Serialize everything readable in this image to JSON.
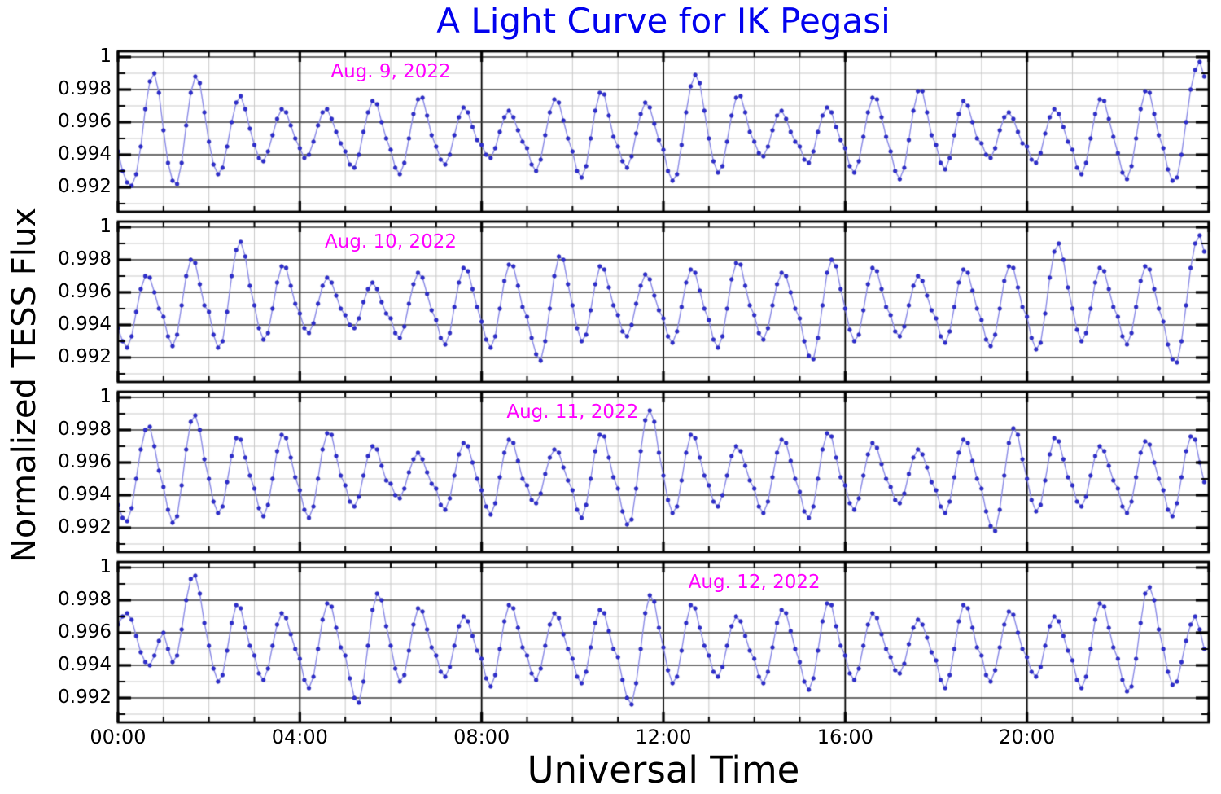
{
  "title": {
    "text": "A Light Curve for IK Pegasi",
    "color": "#0202ee"
  },
  "axes": {
    "x_label": "Universal Time",
    "y_label": "Normalized TESS Flux"
  },
  "style": {
    "marker_color": "#2e2ed2",
    "marker_edge_color": "#1a1aa8",
    "line_color": "#8a8ae6",
    "date_label_color": "#ff00ff",
    "grid_minor_color": "#c9c9c9",
    "grid_major_h_color": "#3a3a3a",
    "grid_major_v_color": "#000000",
    "spine_color": "#000000",
    "background": "#ffffff"
  },
  "chart_data": {
    "type": "line",
    "title": "A Light Curve for IK Pegasi",
    "xlabel": "Universal Time",
    "ylabel": "Normalized TESS Flux",
    "x_range_hours": [
      0,
      24
    ],
    "x_major_ticks": {
      "hours": [
        0,
        4,
        8,
        12,
        16,
        20
      ],
      "labels": [
        "00:00",
        "04:00",
        "08:00",
        "12:00",
        "16:00",
        "20:00"
      ]
    },
    "x_minor_step_hours": 1,
    "y_major_ticks": {
      "values": [
        1.0,
        0.998,
        0.996,
        0.994,
        0.992
      ],
      "labels": [
        "1",
        "0.998",
        "0.996",
        "0.994",
        "0.992"
      ]
    },
    "y_minor_values": [
      0.999,
      0.997,
      0.995,
      0.993,
      0.991
    ],
    "ylim": [
      0.9905,
      1.00035
    ],
    "grid": "both-major-and-minor",
    "legend": "none",
    "flux_base": 0.99,
    "flux_scale": 0.0001,
    "duration_hours": 24,
    "panels": [
      {
        "date_label": "Aug. 9, 2022",
        "label_center_hours": 6,
        "label_flux": 0.9991,
        "values_e4": [
          42,
          30,
          23,
          21,
          28,
          45,
          68,
          85,
          90,
          78,
          55,
          35,
          24,
          22,
          35,
          58,
          78,
          88,
          84,
          66,
          48,
          34,
          28,
          32,
          45,
          60,
          72,
          76,
          68,
          56,
          46,
          38,
          36,
          42,
          52,
          62,
          68,
          66,
          58,
          50,
          44,
          38,
          40,
          48,
          58,
          66,
          68,
          62,
          54,
          47,
          42,
          34,
          32,
          40,
          54,
          66,
          73,
          71,
          60,
          50,
          43,
          32,
          28,
          35,
          50,
          65,
          74,
          75,
          64,
          52,
          45,
          37,
          34,
          40,
          52,
          63,
          69,
          66,
          57,
          49,
          46,
          40,
          38,
          44,
          54,
          63,
          67,
          63,
          55,
          48,
          44,
          34,
          30,
          37,
          52,
          66,
          74,
          72,
          61,
          50,
          42,
          30,
          26,
          33,
          50,
          67,
          78,
          77,
          64,
          51,
          45,
          36,
          32,
          39,
          53,
          65,
          72,
          69,
          59,
          49,
          43,
          30,
          24,
          28,
          46,
          66,
          82,
          89,
          84,
          67,
          50,
          36,
          29,
          33,
          48,
          64,
          75,
          76,
          66,
          54,
          48,
          41,
          39,
          45,
          55,
          64,
          67,
          62,
          54,
          48,
          45,
          37,
          35,
          42,
          54,
          64,
          69,
          66,
          57,
          49,
          44,
          33,
          29,
          36,
          51,
          66,
          75,
          74,
          63,
          51,
          42,
          30,
          25,
          32,
          49,
          67,
          79,
          79,
          66,
          52,
          46,
          35,
          31,
          38,
          52,
          65,
          73,
          70,
          60,
          50,
          47,
          40,
          38,
          44,
          55,
          63,
          66,
          62,
          54,
          47,
          45,
          37,
          35,
          41,
          53,
          63,
          68,
          65,
          57,
          48,
          43,
          32,
          28,
          35,
          50,
          65,
          74,
          73,
          62,
          51,
          41,
          29,
          25,
          33,
          50,
          68,
          79,
          78,
          65,
          52,
          44,
          31,
          24,
          26,
          40,
          60,
          80,
          92,
          97,
          88
        ]
      },
      {
        "date_label": "Aug. 10, 2022",
        "label_center_hours": 6,
        "label_flux": 0.9991,
        "values_e4": [
          38,
          30,
          26,
          33,
          48,
          62,
          70,
          69,
          60,
          50,
          45,
          33,
          27,
          34,
          52,
          70,
          80,
          78,
          65,
          52,
          48,
          34,
          26,
          30,
          48,
          70,
          86,
          91,
          82,
          64,
          52,
          38,
          31,
          35,
          50,
          66,
          76,
          75,
          64,
          53,
          47,
          38,
          35,
          41,
          53,
          64,
          69,
          66,
          58,
          50,
          46,
          40,
          38,
          44,
          54,
          62,
          66,
          62,
          54,
          47,
          44,
          35,
          32,
          39,
          53,
          65,
          72,
          69,
          59,
          49,
          43,
          32,
          28,
          35,
          51,
          66,
          75,
          73,
          62,
          51,
          42,
          31,
          26,
          33,
          50,
          67,
          77,
          76,
          64,
          51,
          45,
          32,
          22,
          18,
          30,
          50,
          70,
          82,
          80,
          65,
          52,
          38,
          30,
          34,
          49,
          65,
          76,
          74,
          63,
          52,
          46,
          36,
          33,
          40,
          53,
          64,
          71,
          68,
          58,
          49,
          44,
          33,
          29,
          36,
          51,
          66,
          74,
          72,
          61,
          50,
          43,
          31,
          26,
          33,
          50,
          68,
          78,
          77,
          64,
          52,
          46,
          35,
          31,
          38,
          52,
          65,
          72,
          70,
          60,
          50,
          44,
          30,
          21,
          19,
          32,
          52,
          72,
          80,
          76,
          62,
          50,
          37,
          30,
          34,
          49,
          65,
          75,
          73,
          62,
          51,
          46,
          36,
          33,
          39,
          52,
          64,
          70,
          67,
          58,
          49,
          44,
          33,
          29,
          36,
          51,
          66,
          74,
          72,
          61,
          50,
          43,
          31,
          27,
          34,
          50,
          67,
          76,
          75,
          63,
          51,
          45,
          32,
          25,
          29,
          47,
          69,
          85,
          90,
          80,
          63,
          50,
          37,
          30,
          35,
          50,
          66,
          75,
          73,
          62,
          51,
          45,
          33,
          28,
          35,
          51,
          67,
          76,
          74,
          62,
          50,
          42,
          28,
          19,
          17,
          30,
          52,
          75,
          90,
          95,
          85
        ]
      },
      {
        "date_label": "Aug. 11, 2022",
        "label_center_hours": 10,
        "label_flux": 0.9991,
        "values_e4": [
          34,
          26,
          24,
          32,
          50,
          68,
          80,
          82,
          70,
          55,
          45,
          31,
          23,
          27,
          46,
          68,
          85,
          89,
          80,
          62,
          50,
          36,
          29,
          33,
          48,
          64,
          75,
          74,
          63,
          52,
          44,
          32,
          27,
          34,
          50,
          67,
          77,
          75,
          63,
          51,
          43,
          31,
          26,
          33,
          50,
          68,
          78,
          77,
          64,
          52,
          46,
          36,
          33,
          39,
          52,
          64,
          70,
          68,
          58,
          49,
          47,
          40,
          38,
          44,
          54,
          62,
          66,
          62,
          54,
          47,
          44,
          34,
          31,
          38,
          52,
          65,
          72,
          70,
          60,
          50,
          43,
          33,
          28,
          35,
          51,
          66,
          74,
          72,
          61,
          50,
          46,
          37,
          35,
          41,
          53,
          63,
          68,
          66,
          57,
          49,
          43,
          31,
          26,
          34,
          50,
          67,
          77,
          76,
          63,
          51,
          44,
          30,
          22,
          25,
          44,
          67,
          86,
          92,
          85,
          66,
          52,
          37,
          29,
          33,
          49,
          66,
          77,
          75,
          63,
          52,
          46,
          36,
          33,
          40,
          52,
          64,
          70,
          67,
          58,
          49,
          44,
          33,
          29,
          36,
          51,
          66,
          74,
          72,
          61,
          50,
          42,
          30,
          26,
          33,
          50,
          68,
          78,
          76,
          63,
          51,
          46,
          35,
          31,
          38,
          52,
          65,
          72,
          69,
          59,
          50,
          45,
          37,
          35,
          41,
          53,
          63,
          68,
          65,
          57,
          48,
          43,
          33,
          29,
          36,
          51,
          66,
          74,
          72,
          61,
          50,
          44,
          30,
          21,
          18,
          31,
          52,
          72,
          81,
          77,
          62,
          50,
          37,
          30,
          34,
          49,
          65,
          75,
          73,
          62,
          51,
          46,
          36,
          33,
          39,
          52,
          64,
          70,
          67,
          58,
          49,
          44,
          33,
          29,
          36,
          51,
          66,
          73,
          71,
          60,
          50,
          43,
          31,
          27,
          35,
          51,
          67,
          76,
          74,
          60,
          48
        ]
      },
      {
        "date_label": "Aug. 12, 2022",
        "label_center_hours": 14,
        "label_flux": 0.9991,
        "values_e4": [
          65,
          70,
          72,
          68,
          58,
          48,
          42,
          40,
          46,
          55,
          60,
          50,
          42,
          46,
          62,
          80,
          93,
          95,
          84,
          66,
          52,
          38,
          30,
          34,
          49,
          66,
          77,
          75,
          63,
          52,
          46,
          35,
          31,
          38,
          52,
          65,
          72,
          69,
          59,
          50,
          44,
          31,
          26,
          33,
          50,
          68,
          78,
          76,
          63,
          51,
          46,
          32,
          20,
          17,
          30,
          52,
          74,
          84,
          80,
          64,
          52,
          38,
          30,
          34,
          49,
          65,
          75,
          73,
          62,
          51,
          46,
          36,
          33,
          39,
          52,
          64,
          70,
          67,
          58,
          49,
          44,
          32,
          27,
          34,
          50,
          67,
          77,
          75,
          63,
          51,
          46,
          35,
          31,
          38,
          52,
          65,
          72,
          69,
          59,
          50,
          44,
          33,
          29,
          36,
          51,
          66,
          74,
          72,
          61,
          50,
          45,
          31,
          20,
          16,
          29,
          50,
          72,
          83,
          79,
          63,
          51,
          37,
          29,
          33,
          49,
          66,
          77,
          75,
          63,
          52,
          46,
          36,
          33,
          39,
          52,
          64,
          70,
          67,
          58,
          49,
          44,
          33,
          29,
          36,
          51,
          66,
          74,
          72,
          61,
          50,
          42,
          30,
          25,
          32,
          49,
          67,
          78,
          77,
          64,
          52,
          46,
          35,
          31,
          38,
          52,
          65,
          72,
          69,
          59,
          50,
          45,
          37,
          35,
          41,
          53,
          63,
          68,
          65,
          57,
          48,
          43,
          31,
          26,
          34,
          50,
          67,
          77,
          75,
          63,
          51,
          46,
          34,
          30,
          37,
          51,
          65,
          73,
          71,
          60,
          50,
          45,
          36,
          33,
          39,
          52,
          64,
          70,
          67,
          58,
          49,
          43,
          31,
          26,
          33,
          50,
          68,
          78,
          76,
          63,
          51,
          44,
          31,
          24,
          27,
          44,
          66,
          84,
          88,
          80,
          62,
          50,
          36,
          28,
          30,
          42,
          55,
          65,
          70,
          62,
          50
        ]
      }
    ]
  }
}
